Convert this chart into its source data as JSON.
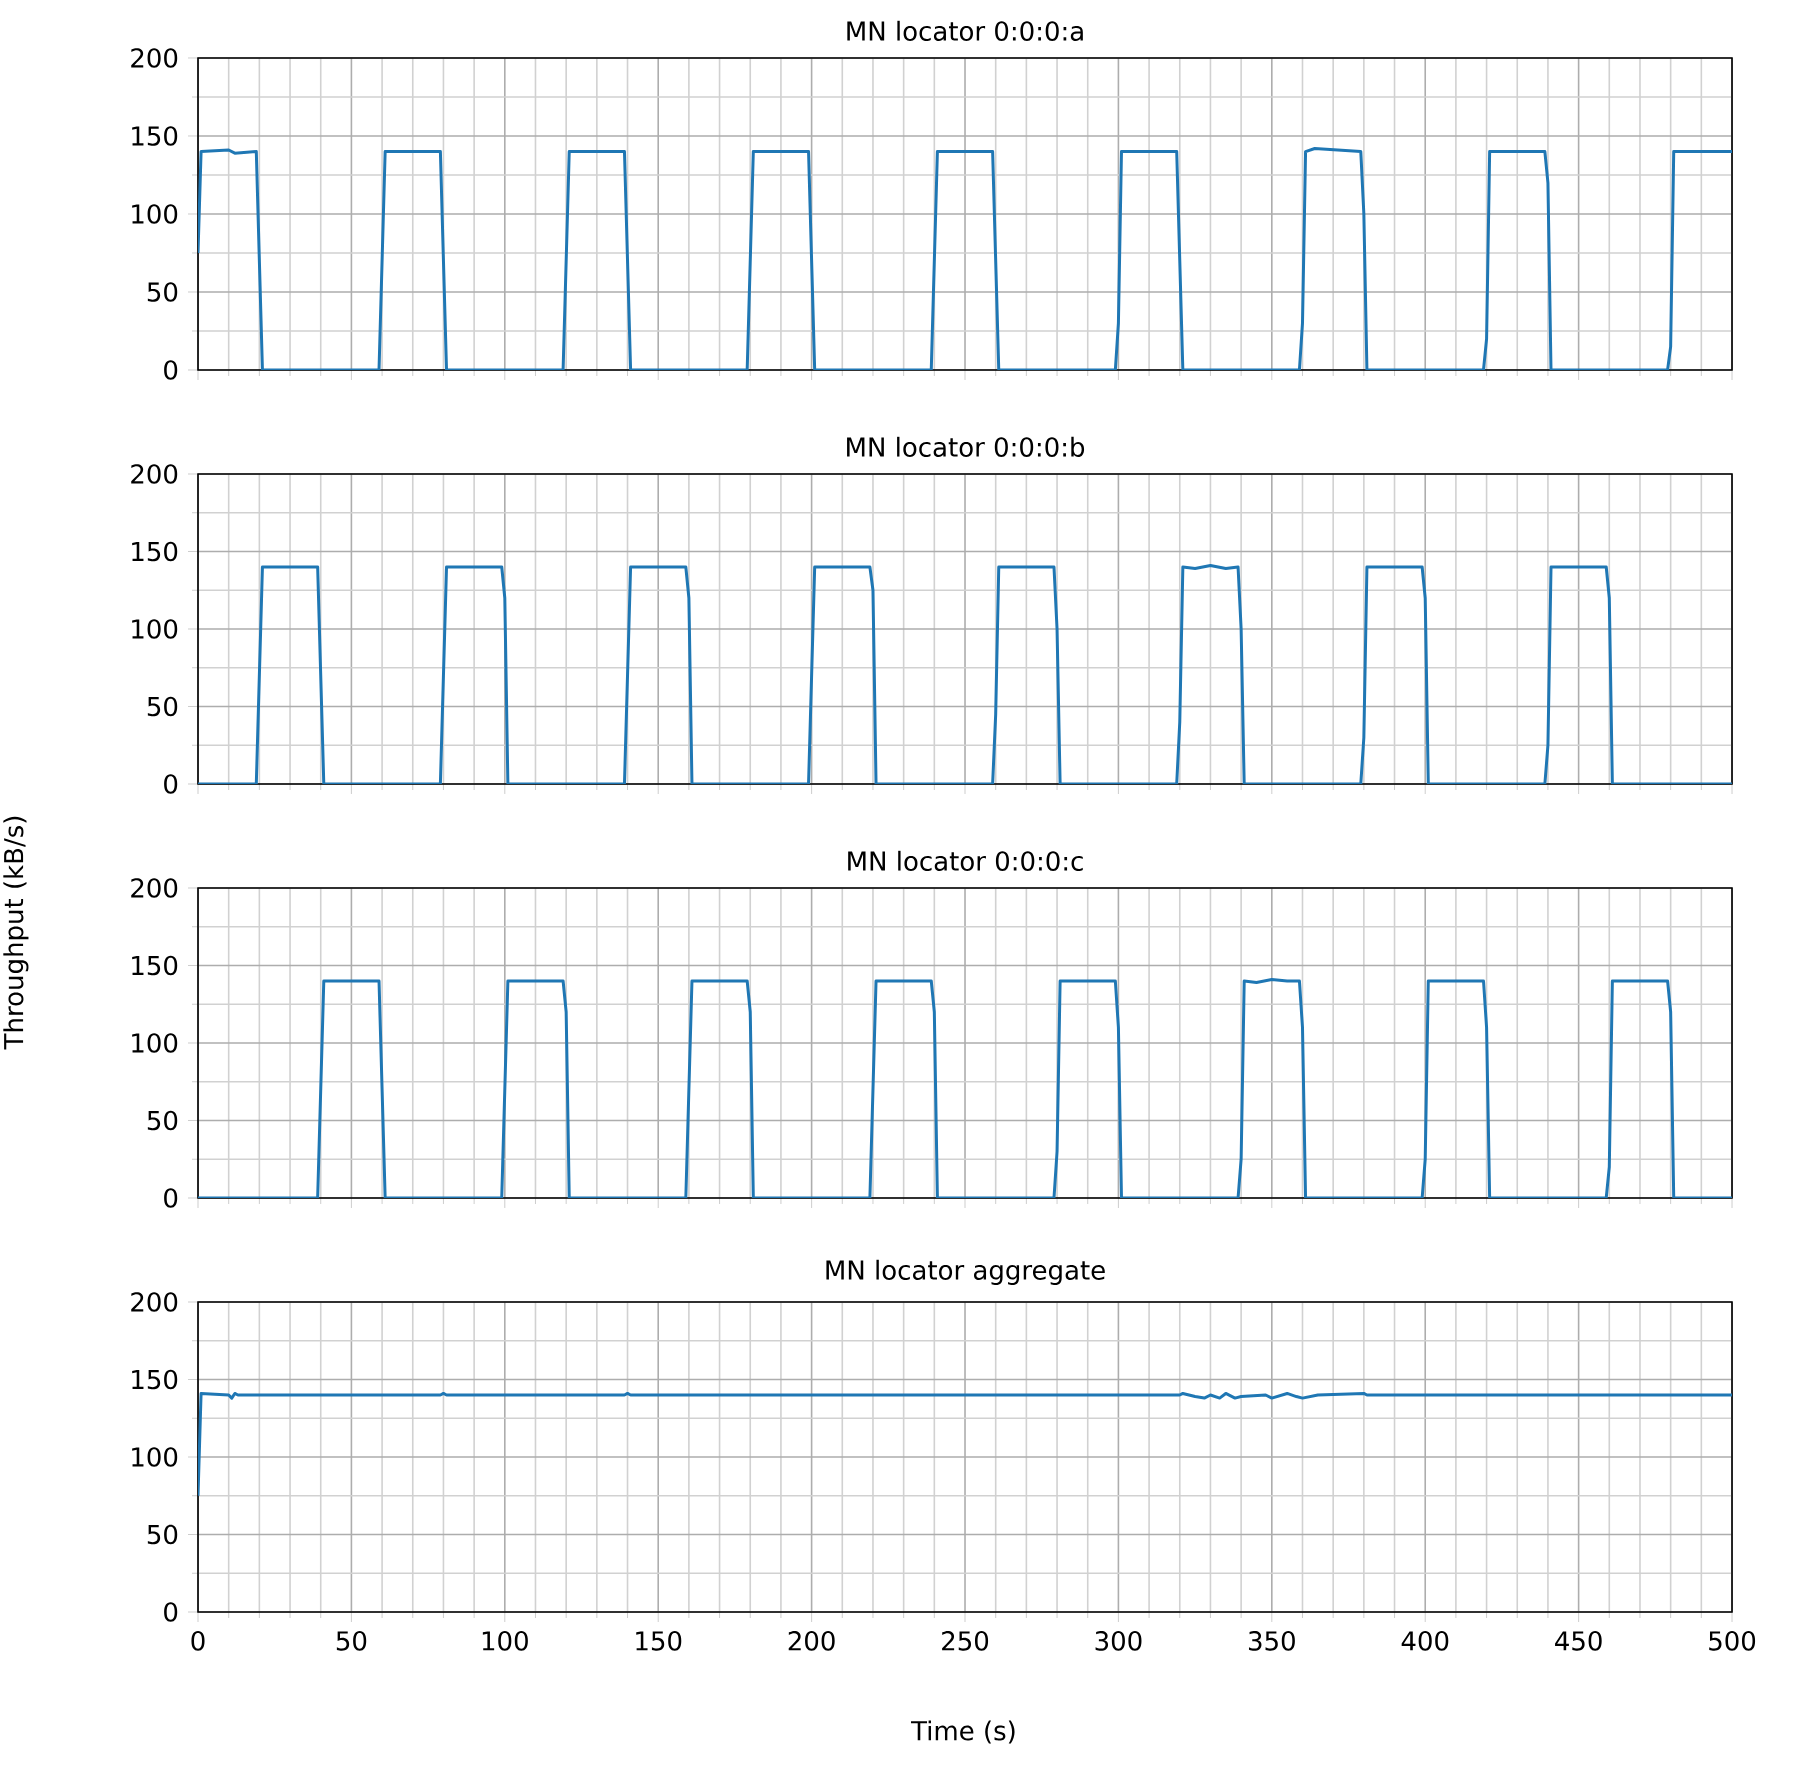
{
  "chart_data": [
    {
      "type": "line",
      "title": "MN locator 0:0:0:a",
      "xlim": [
        0,
        500
      ],
      "xticks": [
        0,
        50,
        100,
        150,
        200,
        250,
        300,
        350,
        400,
        450,
        500
      ],
      "ylim": [
        0,
        200
      ],
      "yticks": [
        0,
        50,
        100,
        150,
        200
      ],
      "grid": true,
      "tick_labels": "y",
      "series": [
        {
          "color": "#1f77b4",
          "x": [
            0,
            1,
            10,
            12,
            19,
            21,
            59,
            61,
            79,
            81,
            119,
            121,
            139,
            141,
            179,
            181,
            199,
            201,
            239,
            241,
            259,
            261,
            299,
            300,
            301,
            319,
            321,
            359,
            360,
            361,
            364,
            379,
            380,
            381,
            419,
            420,
            421,
            439,
            440,
            441,
            479,
            480,
            481,
            500
          ],
          "values": [
            75,
            140,
            141,
            139,
            140,
            0,
            0,
            140,
            140,
            0,
            0,
            140,
            140,
            0,
            0,
            140,
            140,
            0,
            0,
            140,
            140,
            0,
            0,
            30,
            140,
            140,
            0,
            0,
            30,
            140,
            142,
            140,
            100,
            0,
            0,
            20,
            140,
            140,
            120,
            0,
            0,
            15,
            140,
            140
          ]
        }
      ]
    },
    {
      "type": "line",
      "title": "MN locator 0:0:0:b",
      "ylabel": "Throughput (kB/s)",
      "xlim": [
        0,
        500
      ],
      "xticks": [
        0,
        50,
        100,
        150,
        200,
        250,
        300,
        350,
        400,
        450,
        500
      ],
      "ylim": [
        0,
        200
      ],
      "yticks": [
        0,
        50,
        100,
        150,
        200
      ],
      "grid": true,
      "tick_labels": "y",
      "series": [
        {
          "color": "#1f77b4",
          "x": [
            0,
            19,
            21,
            39,
            41,
            79,
            81,
            99,
            100,
            101,
            139,
            141,
            159,
            160,
            161,
            199,
            201,
            219,
            220,
            221,
            259,
            260,
            261,
            279,
            280,
            281,
            319,
            320,
            321,
            325,
            330,
            335,
            339,
            340,
            341,
            379,
            380,
            381,
            399,
            400,
            401,
            439,
            440,
            441,
            459,
            460,
            461,
            500
          ],
          "values": [
            0,
            0,
            140,
            140,
            0,
            0,
            140,
            140,
            120,
            0,
            0,
            140,
            140,
            120,
            0,
            0,
            140,
            140,
            125,
            0,
            0,
            45,
            140,
            140,
            100,
            0,
            0,
            40,
            140,
            139,
            141,
            139,
            140,
            100,
            0,
            0,
            30,
            140,
            140,
            120,
            0,
            0,
            25,
            140,
            140,
            120,
            0,
            0
          ]
        }
      ]
    },
    {
      "type": "line",
      "title": "MN locator 0:0:0:c",
      "xlim": [
        0,
        500
      ],
      "xticks": [
        0,
        50,
        100,
        150,
        200,
        250,
        300,
        350,
        400,
        450,
        500
      ],
      "ylim": [
        0,
        200
      ],
      "yticks": [
        0,
        50,
        100,
        150,
        200
      ],
      "grid": true,
      "tick_labels": "y",
      "series": [
        {
          "color": "#1f77b4",
          "x": [
            0,
            39,
            41,
            59,
            61,
            99,
            101,
            119,
            120,
            121,
            159,
            161,
            179,
            180,
            181,
            219,
            221,
            239,
            240,
            241,
            279,
            280,
            281,
            299,
            300,
            301,
            339,
            340,
            341,
            345,
            350,
            355,
            359,
            360,
            361,
            399,
            400,
            401,
            419,
            420,
            421,
            459,
            460,
            461,
            479,
            480,
            481,
            500
          ],
          "values": [
            0,
            0,
            140,
            140,
            0,
            0,
            140,
            140,
            120,
            0,
            0,
            140,
            140,
            120,
            0,
            0,
            140,
            140,
            120,
            0,
            0,
            30,
            140,
            140,
            110,
            0,
            0,
            25,
            140,
            139,
            141,
            140,
            140,
            110,
            0,
            0,
            25,
            140,
            140,
            110,
            0,
            0,
            20,
            140,
            140,
            120,
            0,
            0
          ]
        }
      ]
    },
    {
      "type": "line",
      "title": "MN locator aggregate",
      "xlabel": "Time (s)",
      "xlim": [
        0,
        500
      ],
      "xticks": [
        0,
        50,
        100,
        150,
        200,
        250,
        300,
        350,
        400,
        450,
        500
      ],
      "ylim": [
        0,
        200
      ],
      "yticks": [
        0,
        50,
        100,
        150,
        200
      ],
      "grid": true,
      "series": [
        {
          "color": "#1f77b4",
          "x": [
            0,
            1,
            10,
            11,
            12,
            13,
            79,
            80,
            81,
            139,
            140,
            141,
            320,
            321,
            325,
            328,
            330,
            333,
            335,
            338,
            340,
            348,
            350,
            355,
            358,
            360,
            365,
            380,
            381,
            500
          ],
          "values": [
            75,
            141,
            140,
            138,
            141,
            140,
            140,
            141,
            140,
            140,
            141,
            140,
            140,
            141,
            139,
            138,
            140,
            138,
            141,
            138,
            139,
            140,
            138,
            141,
            139,
            138,
            140,
            141,
            140,
            140
          ]
        }
      ]
    }
  ]
}
